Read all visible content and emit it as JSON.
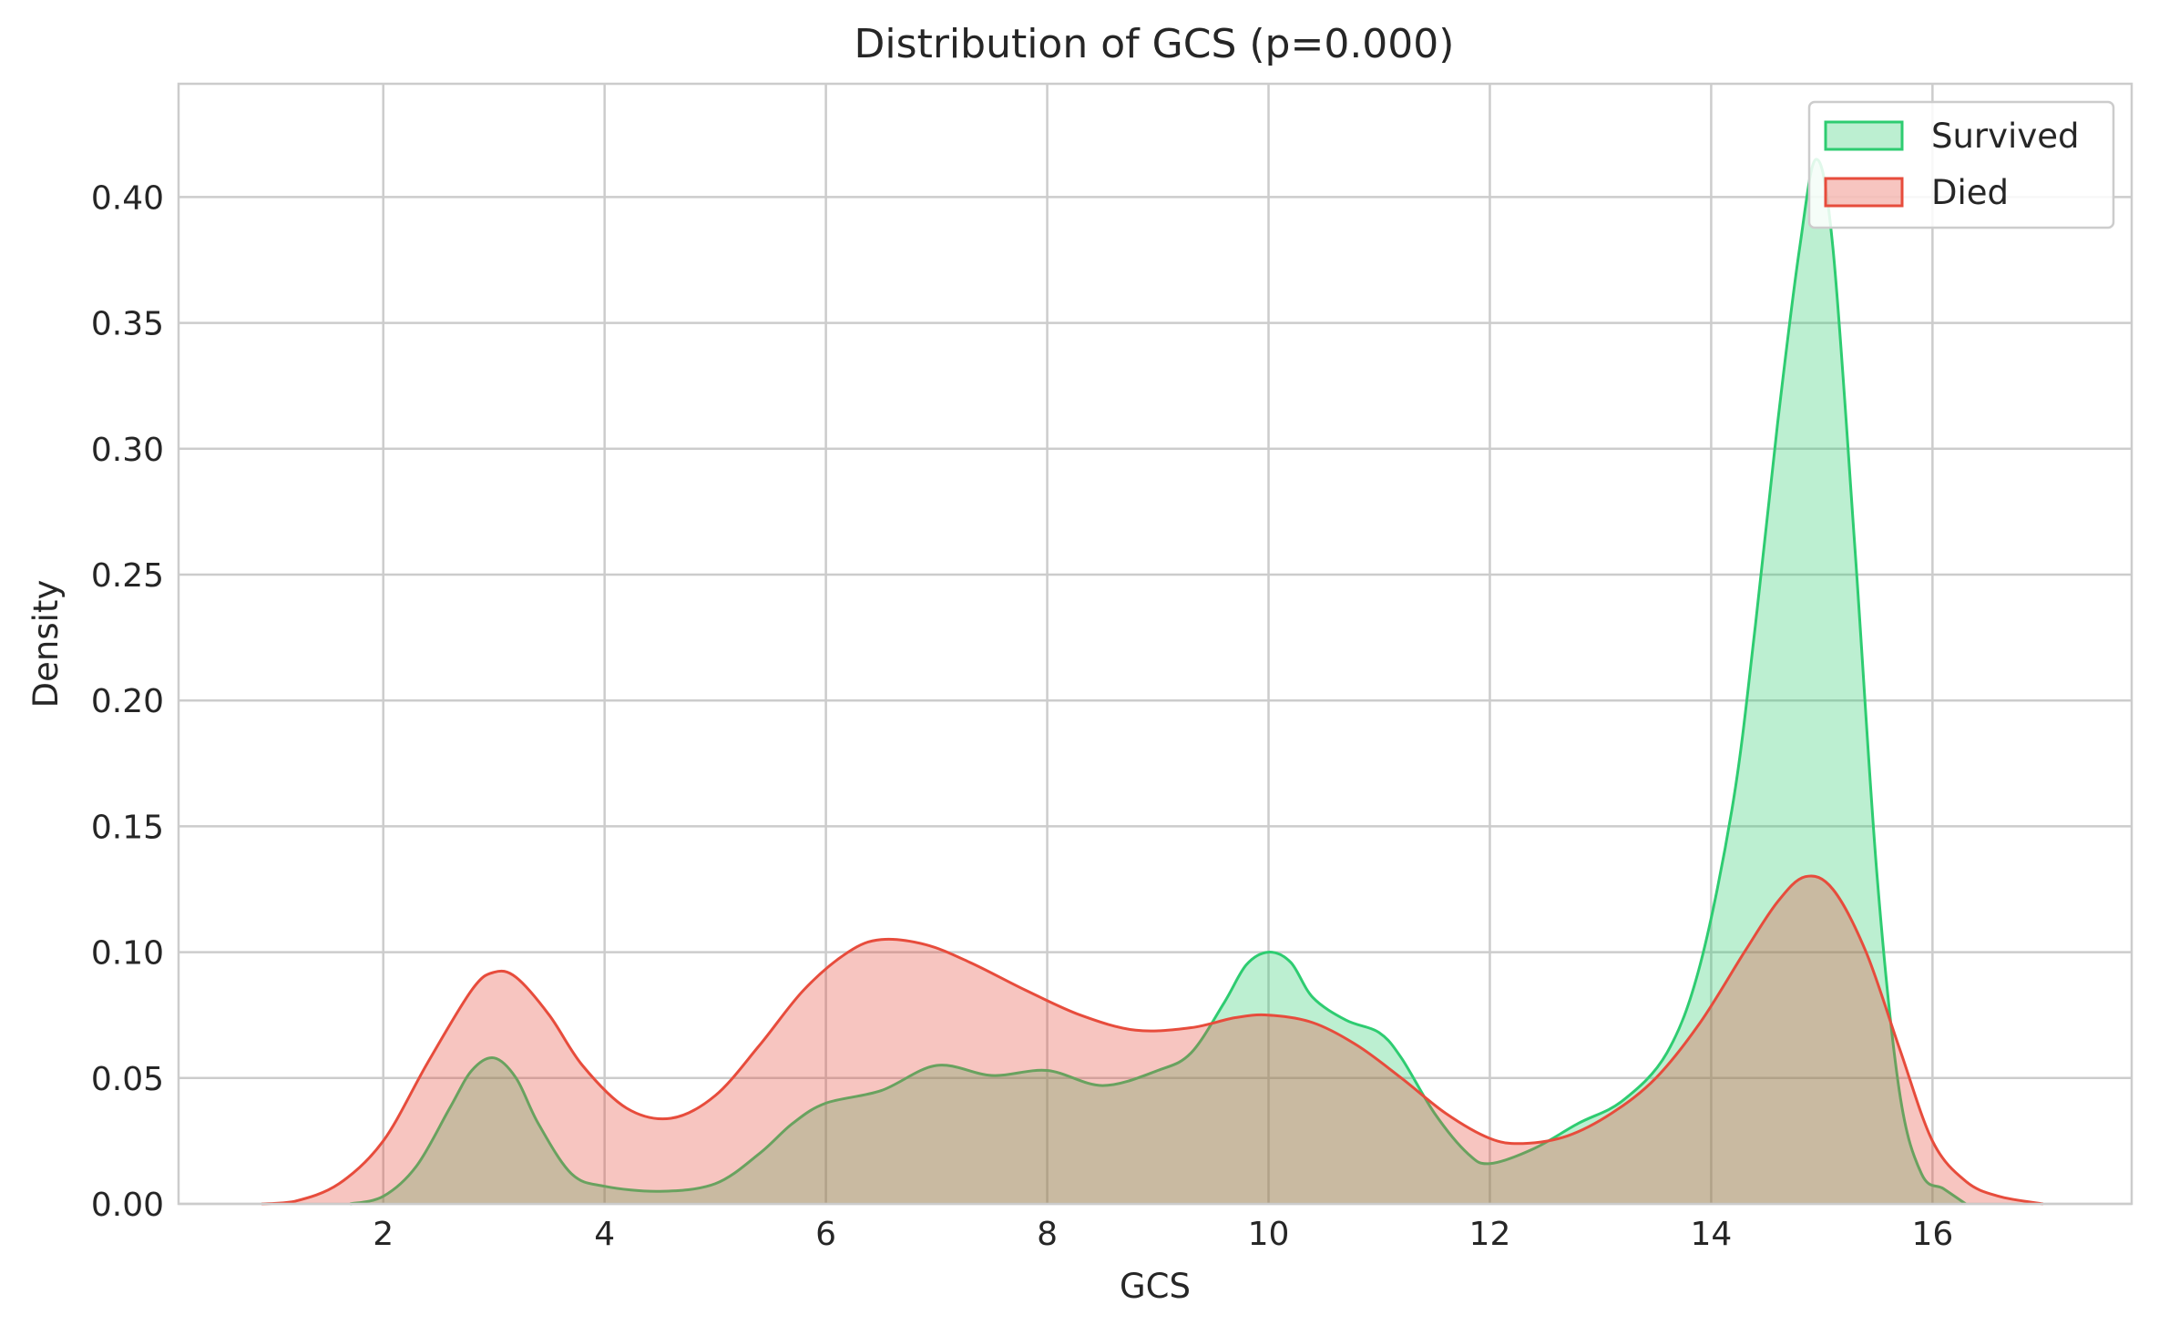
{
  "chart_data": {
    "type": "area",
    "title": "Distribution of GCS (p=0.000)",
    "xlabel": "GCS",
    "ylabel": "Density",
    "xlim": [
      0.15,
      17.8
    ],
    "ylim": [
      0,
      0.445
    ],
    "xticks": [
      2,
      4,
      6,
      8,
      10,
      12,
      14,
      16
    ],
    "xtick_labels": [
      "2",
      "4",
      "6",
      "8",
      "10",
      "12",
      "14",
      "16"
    ],
    "yticks": [
      0,
      0.05,
      0.1,
      0.15,
      0.2,
      0.25,
      0.3,
      0.35,
      0.4
    ],
    "ytick_labels": [
      "0.00",
      "0.05",
      "0.10",
      "0.15",
      "0.20",
      "0.25",
      "0.30",
      "0.35",
      "0.40"
    ],
    "grid": true,
    "legend": {
      "position": "top-right"
    },
    "colors": {
      "survived_line": "#2ecc71",
      "survived_fill": "#2ecc71",
      "died_line": "#e74c3c",
      "died_fill": "#e74c3c",
      "overlap_line": "#5a9e5a"
    },
    "series": [
      {
        "name": "Survived",
        "x": [
          1.7,
          2.0,
          2.3,
          2.6,
          2.8,
          3.0,
          3.2,
          3.4,
          3.7,
          4.0,
          4.5,
          5.0,
          5.4,
          5.7,
          6.0,
          6.5,
          7.0,
          7.5,
          8.0,
          8.5,
          9.0,
          9.3,
          9.6,
          9.8,
          10.0,
          10.2,
          10.4,
          10.7,
          11.0,
          11.2,
          11.5,
          11.8,
          12.0,
          12.4,
          12.8,
          13.2,
          13.6,
          13.9,
          14.2,
          14.4,
          14.6,
          14.8,
          14.95,
          15.1,
          15.3,
          15.5,
          15.7,
          15.9,
          16.1,
          16.3
        ],
        "y": [
          0.0,
          0.003,
          0.015,
          0.038,
          0.053,
          0.058,
          0.05,
          0.032,
          0.012,
          0.007,
          0.005,
          0.008,
          0.02,
          0.032,
          0.04,
          0.045,
          0.055,
          0.051,
          0.053,
          0.047,
          0.053,
          0.06,
          0.08,
          0.095,
          0.1,
          0.096,
          0.082,
          0.073,
          0.068,
          0.058,
          0.036,
          0.02,
          0.016,
          0.022,
          0.032,
          0.041,
          0.06,
          0.095,
          0.16,
          0.23,
          0.31,
          0.38,
          0.415,
          0.38,
          0.26,
          0.13,
          0.045,
          0.012,
          0.006,
          0.0
        ]
      },
      {
        "name": "Died",
        "x": [
          0.9,
          1.2,
          1.6,
          2.0,
          2.4,
          2.8,
          3.0,
          3.2,
          3.5,
          3.8,
          4.2,
          4.6,
          5.0,
          5.4,
          5.8,
          6.2,
          6.5,
          6.9,
          7.3,
          7.8,
          8.3,
          8.8,
          9.3,
          9.7,
          10.0,
          10.4,
          10.8,
          11.2,
          11.6,
          12.0,
          12.3,
          12.7,
          13.1,
          13.5,
          13.9,
          14.3,
          14.6,
          14.85,
          15.1,
          15.4,
          15.7,
          16.0,
          16.3,
          16.6,
          17.0
        ],
        "y": [
          0.0,
          0.001,
          0.008,
          0.025,
          0.056,
          0.085,
          0.092,
          0.09,
          0.075,
          0.055,
          0.038,
          0.034,
          0.043,
          0.063,
          0.085,
          0.1,
          0.105,
          0.103,
          0.096,
          0.085,
          0.075,
          0.069,
          0.07,
          0.074,
          0.075,
          0.072,
          0.063,
          0.05,
          0.036,
          0.026,
          0.024,
          0.027,
          0.036,
          0.05,
          0.072,
          0.1,
          0.12,
          0.13,
          0.125,
          0.1,
          0.062,
          0.025,
          0.009,
          0.003,
          0.0
        ]
      }
    ]
  }
}
